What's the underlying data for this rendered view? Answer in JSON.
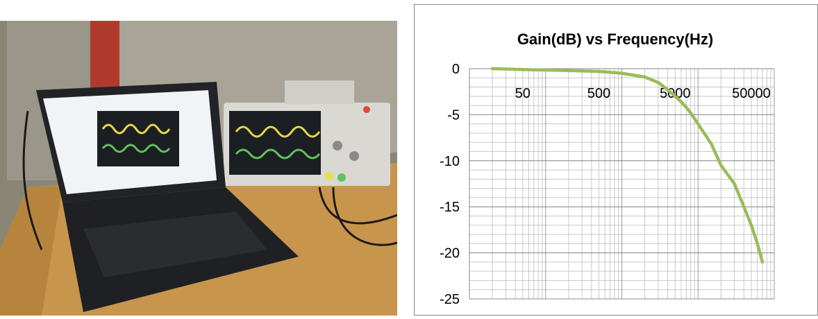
{
  "photo": {
    "subject": "laptop connected to oscilloscope on lab bench"
  },
  "chart_data": {
    "type": "line",
    "title": "Gain(dB) vs Frequency(Hz)",
    "xlabel": "",
    "ylabel": "",
    "xscale": "log",
    "xlim": [
      10,
      100000
    ],
    "ylim": [
      -25,
      0
    ],
    "yticks": [
      0,
      -5,
      -10,
      -15,
      -20,
      -25
    ],
    "ytick_labels": [
      "0",
      "-5",
      "-10",
      "-15",
      "-20",
      "-25"
    ],
    "xticks": [
      50,
      500,
      5000,
      50000
    ],
    "xtick_labels": [
      "50",
      "500",
      "5000",
      "50000"
    ],
    "grid": true,
    "legend": "none",
    "line_color": "#9BBB59",
    "series": [
      {
        "x": [
          20,
          50,
          100,
          200,
          500,
          1000,
          2000,
          3000,
          4000,
          5000,
          6000,
          7000,
          8000,
          10000,
          15000,
          20000,
          30000,
          40000,
          50000,
          60000,
          70000
        ],
        "y": [
          0,
          -0.1,
          -0.15,
          -0.2,
          -0.3,
          -0.5,
          -0.9,
          -1.5,
          -2.3,
          -3.0,
          -3.6,
          -4.2,
          -4.8,
          -6.0,
          -8.2,
          -10.5,
          -12.5,
          -15.0,
          -17.0,
          -19.0,
          -21.0
        ]
      }
    ]
  }
}
